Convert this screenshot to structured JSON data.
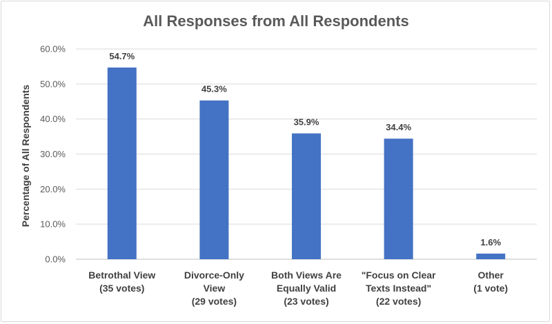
{
  "chart_data": {
    "type": "bar",
    "title": "All Responses from All Respondents",
    "xlabel": "",
    "ylabel": "Percentage of All Respondents",
    "categories": [
      [
        "Betrothal View",
        "(35 votes)"
      ],
      [
        "Divorce-Only",
        "View",
        "(29 votes)"
      ],
      [
        "Both Views Are",
        "Equally Valid",
        "(23 votes)"
      ],
      [
        "\"Focus on Clear",
        "Texts Instead\"",
        "(22 votes)"
      ],
      [
        "Other",
        "(1 vote)"
      ]
    ],
    "values": [
      54.7,
      45.3,
      35.9,
      34.4,
      1.6
    ],
    "data_labels": [
      "54.7%",
      "45.3%",
      "35.9%",
      "34.4%",
      "1.6%"
    ],
    "y_ticks": [
      0,
      10,
      20,
      30,
      40,
      50,
      60
    ],
    "y_tick_labels": [
      "0.0%",
      "10.0%",
      "20.0%",
      "30.0%",
      "40.0%",
      "50.0%",
      "60.0%"
    ],
    "ylim": [
      0,
      60
    ],
    "grid": true,
    "legend": "none",
    "colors": {
      "bar": "#4472c4",
      "grid": "#d9d9d9",
      "text": "#404040",
      "title": "#595959"
    }
  }
}
